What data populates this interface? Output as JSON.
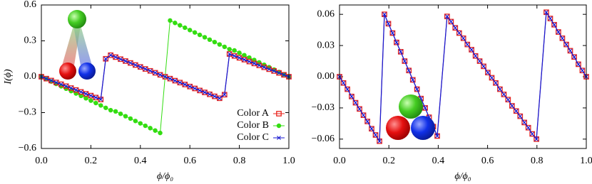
{
  "chart_data": [
    {
      "type": "line",
      "xlabel": "ϕ/ϕ₀",
      "ylabel": "I(ϕ)",
      "xlim": [
        0,
        1
      ],
      "ylim": [
        -0.6,
        0.6
      ],
      "xticks": [
        {
          "value": 0,
          "label": "0.0"
        },
        {
          "value": 0.2,
          "label": "0.2"
        },
        {
          "value": 0.4,
          "label": "0.4"
        },
        {
          "value": 0.6,
          "label": "0.6"
        },
        {
          "value": 0.8,
          "label": "0.8"
        },
        {
          "value": 1,
          "label": "1.0"
        }
      ],
      "yticks": [
        {
          "value": -0.6,
          "label": "−0.6"
        },
        {
          "value": -0.3,
          "label": "−0.3"
        },
        {
          "value": 0,
          "label": "0.0"
        },
        {
          "value": 0.3,
          "label": "0.3"
        },
        {
          "value": 0.6,
          "label": "0.6"
        }
      ],
      "legend": "lower right",
      "x": [
        0,
        0.02,
        0.04,
        0.06,
        0.08,
        0.1,
        0.12,
        0.14,
        0.16,
        0.18,
        0.2,
        0.22,
        0.24,
        0.26,
        0.28,
        0.3,
        0.32,
        0.34,
        0.36,
        0.38,
        0.4,
        0.42,
        0.44,
        0.46,
        0.48,
        0.5,
        0.52,
        0.54,
        0.56,
        0.58,
        0.6,
        0.62,
        0.64,
        0.66,
        0.68,
        0.7,
        0.72,
        0.74,
        0.76,
        0.78,
        0.8,
        0.82,
        0.84,
        0.86,
        0.88,
        0.9,
        0.92,
        0.94,
        0.96,
        0.98,
        1
      ],
      "series": [
        {
          "name": "Color B",
          "color": "#33dd11",
          "marker": "circle",
          "x": [
            0,
            0.02,
            0.04,
            0.06,
            0.08,
            0.1,
            0.12,
            0.14,
            0.16,
            0.18,
            0.2,
            0.22,
            0.24,
            0.26,
            0.28,
            0.3,
            0.32,
            0.34,
            0.36,
            0.38,
            0.4,
            0.42,
            0.44,
            0.46,
            0.48,
            0.52,
            0.54,
            0.56,
            0.58,
            0.6,
            0.62,
            0.64,
            0.66,
            0.68,
            0.7,
            0.72,
            0.74,
            0.76,
            0.78,
            0.8,
            0.82,
            0.84,
            0.86,
            0.88,
            0.9,
            0.92,
            0.94,
            0.96,
            0.98,
            1
          ],
          "values": [
            0,
            -0.02,
            -0.04,
            -0.06,
            -0.08,
            -0.1,
            -0.12,
            -0.14,
            -0.16,
            -0.18,
            -0.2,
            -0.22,
            -0.24,
            -0.26,
            -0.28,
            -0.29,
            -0.31,
            -0.33,
            -0.35,
            -0.37,
            -0.39,
            -0.41,
            -0.43,
            -0.45,
            -0.47,
            0.47,
            0.45,
            0.43,
            0.41,
            0.39,
            0.37,
            0.35,
            0.33,
            0.31,
            0.29,
            0.27,
            0.25,
            0.23,
            0.22,
            0.2,
            0.18,
            0.16,
            0.14,
            0.12,
            0.1,
            0.08,
            0.06,
            0.04,
            0.02,
            0
          ]
        },
        {
          "name": "Color A",
          "color": "#e8231c",
          "marker": "square",
          "values": [
            0,
            -0.016,
            -0.032,
            -0.048,
            -0.063,
            -0.079,
            -0.095,
            -0.111,
            -0.127,
            -0.143,
            -0.158,
            -0.174,
            -0.19,
            0.15,
            0.18,
            0.164,
            0.147,
            0.131,
            0.115,
            0.098,
            0.082,
            0.065,
            0.049,
            0.033,
            0.016,
            0,
            -0.016,
            -0.033,
            -0.049,
            -0.065,
            -0.082,
            -0.098,
            -0.115,
            -0.131,
            -0.147,
            -0.164,
            -0.18,
            -0.15,
            0.19,
            0.174,
            0.158,
            0.143,
            0.127,
            0.111,
            0.095,
            0.079,
            0.063,
            0.048,
            0.032,
            0.016,
            0
          ]
        },
        {
          "name": "Color C",
          "color": "#1a1ad0",
          "marker": "x",
          "values": [
            0,
            -0.016,
            -0.032,
            -0.048,
            -0.063,
            -0.079,
            -0.095,
            -0.111,
            -0.127,
            -0.143,
            -0.158,
            -0.174,
            -0.19,
            0.15,
            0.18,
            0.164,
            0.147,
            0.131,
            0.115,
            0.098,
            0.082,
            0.065,
            0.049,
            0.033,
            0.016,
            0,
            -0.016,
            -0.033,
            -0.049,
            -0.065,
            -0.082,
            -0.098,
            -0.115,
            -0.131,
            -0.147,
            -0.164,
            -0.18,
            -0.15,
            0.19,
            0.174,
            0.158,
            0.143,
            0.127,
            0.111,
            0.095,
            0.079,
            0.063,
            0.048,
            0.032,
            0.016,
            0
          ]
        }
      ]
    },
    {
      "type": "line",
      "xlabel": "ϕ/ϕ₀",
      "xlim": [
        0,
        1
      ],
      "ylim": [
        -0.069,
        0.069
      ],
      "xticks": [
        {
          "value": 0,
          "label": "0.0"
        },
        {
          "value": 0.2,
          "label": "0.2"
        },
        {
          "value": 0.4,
          "label": "0.4"
        },
        {
          "value": 0.6,
          "label": "0.6"
        },
        {
          "value": 0.8,
          "label": "0.8"
        },
        {
          "value": 1,
          "label": "1.0"
        }
      ],
      "yticks": [
        {
          "value": -0.06,
          "label": "−0.06"
        },
        {
          "value": -0.03,
          "label": "−0.03"
        },
        {
          "value": 0,
          "label": "0.00"
        },
        {
          "value": 0.03,
          "label": "0.03"
        },
        {
          "value": 0.06,
          "label": "0.06"
        }
      ],
      "x": [
        0,
        0.016,
        0.032,
        0.049,
        0.065,
        0.081,
        0.097,
        0.113,
        0.13,
        0.146,
        0.162,
        0.182,
        0.198,
        0.215,
        0.231,
        0.248,
        0.264,
        0.281,
        0.297,
        0.314,
        0.33,
        0.347,
        0.363,
        0.38,
        0.396,
        0.436,
        0.452,
        0.469,
        0.485,
        0.502,
        0.518,
        0.535,
        0.551,
        0.568,
        0.584,
        0.601,
        0.617,
        0.633,
        0.65,
        0.666,
        0.683,
        0.699,
        0.716,
        0.732,
        0.749,
        0.765,
        0.781,
        0.798,
        0.838,
        0.854,
        0.87,
        0.887,
        0.903,
        0.919,
        0.935,
        0.951,
        0.968,
        0.984,
        1
      ],
      "series": [
        {
          "color": "#e8231c",
          "marker": "square",
          "values": [
            0,
            -0.006,
            -0.012,
            -0.019,
            -0.025,
            -0.031,
            -0.037,
            -0.043,
            -0.05,
            -0.056,
            -0.062,
            0.06,
            0.051,
            0.042,
            0.033,
            0.024,
            0.015,
            0.006,
            -0.003,
            -0.012,
            -0.021,
            -0.03,
            -0.039,
            -0.048,
            -0.057,
            0.058,
            0.053,
            0.047,
            0.042,
            0.037,
            0.031,
            0.026,
            0.02,
            0.015,
            0.01,
            0.004,
            -0.001,
            -0.006,
            -0.012,
            -0.017,
            -0.022,
            -0.028,
            -0.033,
            -0.038,
            -0.044,
            -0.049,
            -0.055,
            -0.06,
            0.062,
            0.056,
            0.05,
            0.043,
            0.037,
            0.031,
            0.025,
            0.019,
            0.012,
            0.006,
            0
          ]
        },
        {
          "color": "#1a1ad0",
          "marker": "x",
          "values": [
            0,
            -0.006,
            -0.012,
            -0.019,
            -0.025,
            -0.031,
            -0.037,
            -0.043,
            -0.05,
            -0.056,
            -0.062,
            0.06,
            0.051,
            0.042,
            0.033,
            0.024,
            0.015,
            0.006,
            -0.003,
            -0.012,
            -0.021,
            -0.03,
            -0.039,
            -0.048,
            -0.057,
            0.058,
            0.053,
            0.047,
            0.042,
            0.037,
            0.031,
            0.026,
            0.02,
            0.015,
            0.01,
            0.004,
            -0.001,
            -0.006,
            -0.012,
            -0.017,
            -0.022,
            -0.028,
            -0.033,
            -0.038,
            -0.044,
            -0.049,
            -0.055,
            -0.06,
            0.062,
            0.056,
            0.05,
            0.043,
            0.037,
            0.031,
            0.025,
            0.019,
            0.012,
            0.006,
            0
          ]
        }
      ]
    }
  ]
}
